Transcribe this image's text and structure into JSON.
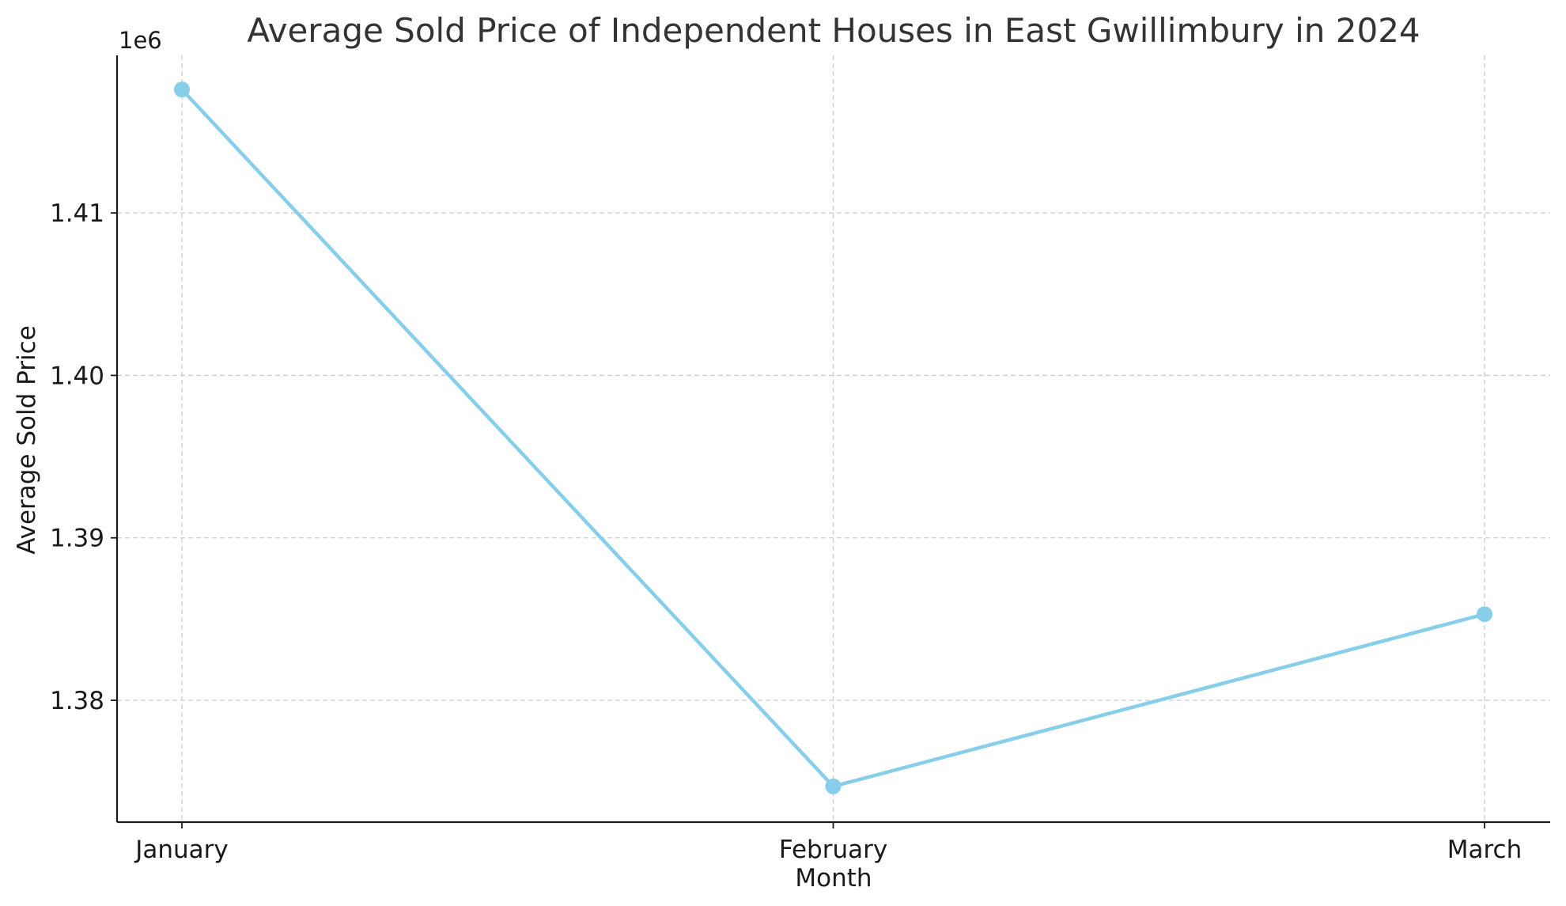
{
  "chart_data": {
    "type": "line",
    "title": "Average Sold Price of Independent Houses in East Gwillimbury in 2024",
    "xlabel": "Month",
    "ylabel": "Average Sold Price",
    "y_offset_label": "1e6",
    "categories": [
      "January",
      "February",
      "March"
    ],
    "series": [
      {
        "values": [
          1417600,
          1374700,
          1385300
        ],
        "color": "#87ceeb"
      }
    ],
    "ylim": [
      1372500,
      1419700
    ],
    "yticks": [
      1380000,
      1390000,
      1400000,
      1410000
    ],
    "ytick_labels": [
      "1.38",
      "1.39",
      "1.40",
      "1.41"
    ],
    "grid": true
  }
}
